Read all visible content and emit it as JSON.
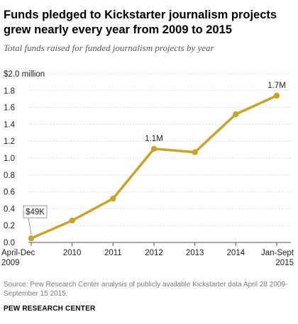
{
  "chart_data": {
    "type": "line",
    "title": "Funds pledged to Kickstarter journalism projects grew nearly every year from 2009 to 2015",
    "subtitle": "Total funds raised for funded journalism projects by year",
    "categories": [
      [
        "April-Dec",
        "2009"
      ],
      [
        "2010"
      ],
      [
        "2011"
      ],
      [
        "2012"
      ],
      [
        "2013"
      ],
      [
        "2014"
      ],
      [
        "Jan-Sept",
        "2015"
      ]
    ],
    "series": [
      {
        "values": [
          0.049,
          0.26,
          0.52,
          1.11,
          1.07,
          1.52,
          1.74
        ],
        "color": "#c9a42a"
      }
    ],
    "y_ticks": [
      "0.0",
      "0.2",
      "0.4",
      "0.6",
      "0.8",
      "1.0",
      "1.2",
      "1.4",
      "1.6",
      "1.8",
      "$2.0 million"
    ],
    "ylim": [
      0,
      2.0
    ],
    "annotations": [
      {
        "index": 0,
        "text": "$49K",
        "boxed": true
      },
      {
        "index": 3,
        "text": "1.1M"
      },
      {
        "index": 6,
        "text": "1.7M"
      }
    ],
    "grid": true,
    "source": "Source: Pew Research Center analysis of publicly available Kickstarter data April 28 2009-September 15 2015.",
    "org": "PEW RESEARCH CENTER"
  }
}
